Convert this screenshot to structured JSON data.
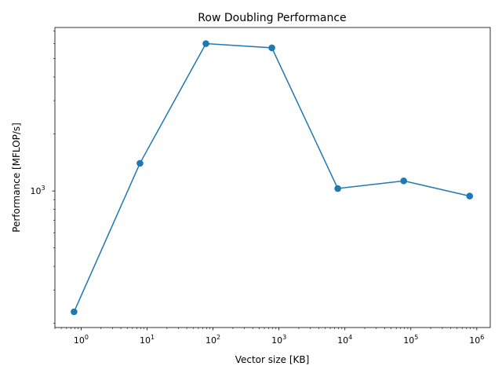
{
  "chart_data": {
    "type": "line",
    "title": "Row Doubling Performance",
    "xlabel": "Vector size [KB]",
    "ylabel": "Performance [MFLOP/s]",
    "xscale": "log",
    "yscale": "log",
    "xlim": [
      0.4,
      1600000
    ],
    "ylim": [
      190,
      7300
    ],
    "grid": false,
    "x_ticks": [
      {
        "base": "10",
        "exp": "0",
        "value": 1
      },
      {
        "base": "10",
        "exp": "1",
        "value": 10
      },
      {
        "base": "10",
        "exp": "2",
        "value": 100
      },
      {
        "base": "10",
        "exp": "3",
        "value": 1000
      },
      {
        "base": "10",
        "exp": "4",
        "value": 10000
      },
      {
        "base": "10",
        "exp": "5",
        "value": 100000
      },
      {
        "base": "10",
        "exp": "6",
        "value": 1000000
      }
    ],
    "y_ticks": [
      {
        "base": "10",
        "exp": "3",
        "value": 1000
      }
    ],
    "series": [
      {
        "color": "#1f77b4",
        "marker": "circle",
        "x": [
          0.78,
          7.8,
          78,
          780,
          7800,
          78000,
          780000
        ],
        "y": [
          230,
          1400,
          6000,
          5700,
          1030,
          1130,
          940
        ]
      }
    ]
  }
}
